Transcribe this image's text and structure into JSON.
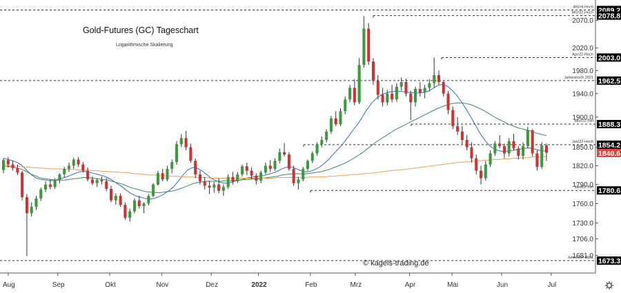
{
  "chart_data": {
    "type": "candlestick",
    "title": "Gold-Futures (GC) Tageschart",
    "subtitle": "Logarithmische Skalierung",
    "watermark": "© kagels-trading.de",
    "y_scale": "log",
    "ylim": [
      1655,
      2100
    ],
    "y_ticks": [
      "2070.0",
      "2020.0",
      "1980.0",
      "1940.0",
      "1900.0",
      "1850.0",
      "1820.0",
      "1790.0",
      "1760.0",
      "1730.0",
      "1706.0",
      "1681.0"
    ],
    "x_ticks": [
      "Aug",
      "Sep",
      "Okt",
      "Nov",
      "Dez",
      "2022",
      "Feb",
      "Mrz",
      "Apr",
      "Mai",
      "Jun",
      "Jul"
    ],
    "levels": [
      {
        "name": "Allzeit-Hoch",
        "value": 2089.2,
        "badge": "2089.2"
      },
      {
        "name": "Mrz/22-Hoch",
        "value": 2078.8,
        "badge": "2078.8"
      },
      {
        "name": "Apr/22-Hoch",
        "value": 2003.0,
        "badge": "2003.0"
      },
      {
        "name": "Jahreshoch 2021",
        "value": 1962.5,
        "badge": "1962.5"
      },
      {
        "name": "Mrz/22-Tief",
        "value": 1888.3,
        "badge": "1888.3"
      },
      {
        "name": "Jan/22-Hoch",
        "value": 1854.2,
        "badge": "1854.2"
      },
      {
        "name": "Jan/22-Tief",
        "value": 1780.6,
        "badge": "1780.6"
      },
      {
        "name": "Jahrestief 2021",
        "value": 1673.3,
        "badge": "1673.3"
      }
    ],
    "last_price": {
      "value": 1840.6,
      "badge": "1840.6"
    },
    "series": [
      {
        "kind": "ohlc",
        "name": "",
        "values": [
          [
            1813,
            1832,
            1808,
            1829
          ],
          [
            1829,
            1834,
            1817,
            1822
          ],
          [
            1822,
            1828,
            1812,
            1816
          ],
          [
            1816,
            1822,
            1805,
            1809
          ],
          [
            1809,
            1812,
            1765,
            1770
          ],
          [
            1770,
            1775,
            1680,
            1745
          ],
          [
            1745,
            1762,
            1740,
            1755
          ],
          [
            1755,
            1772,
            1750,
            1768
          ],
          [
            1768,
            1785,
            1764,
            1782
          ],
          [
            1782,
            1795,
            1778,
            1790
          ],
          [
            1790,
            1798,
            1782,
            1786
          ],
          [
            1786,
            1800,
            1783,
            1797
          ],
          [
            1797,
            1808,
            1792,
            1806
          ],
          [
            1806,
            1818,
            1801,
            1815
          ],
          [
            1815,
            1825,
            1810,
            1820
          ],
          [
            1820,
            1833,
            1815,
            1830
          ],
          [
            1830,
            1834,
            1818,
            1822
          ],
          [
            1822,
            1826,
            1809,
            1812
          ],
          [
            1812,
            1817,
            1795,
            1798
          ],
          [
            1798,
            1803,
            1789,
            1792
          ],
          [
            1792,
            1800,
            1786,
            1797
          ],
          [
            1797,
            1803,
            1790,
            1795
          ],
          [
            1795,
            1800,
            1780,
            1783
          ],
          [
            1783,
            1788,
            1762,
            1765
          ],
          [
            1765,
            1776,
            1758,
            1772
          ],
          [
            1772,
            1776,
            1755,
            1758
          ],
          [
            1758,
            1762,
            1735,
            1738
          ],
          [
            1738,
            1752,
            1732,
            1748
          ],
          [
            1748,
            1768,
            1745,
            1765
          ],
          [
            1765,
            1772,
            1752,
            1756
          ],
          [
            1756,
            1762,
            1745,
            1760
          ],
          [
            1760,
            1775,
            1757,
            1772
          ],
          [
            1772,
            1792,
            1770,
            1790
          ],
          [
            1790,
            1812,
            1788,
            1808
          ],
          [
            1808,
            1815,
            1795,
            1798
          ],
          [
            1798,
            1820,
            1795,
            1815
          ],
          [
            1815,
            1830,
            1808,
            1826
          ],
          [
            1826,
            1860,
            1822,
            1855
          ],
          [
            1855,
            1872,
            1850,
            1865
          ],
          [
            1865,
            1877,
            1845,
            1850
          ],
          [
            1850,
            1856,
            1825,
            1828
          ],
          [
            1828,
            1832,
            1800,
            1806
          ],
          [
            1806,
            1812,
            1790,
            1795
          ],
          [
            1795,
            1802,
            1782,
            1788
          ],
          [
            1788,
            1796,
            1775,
            1785
          ],
          [
            1785,
            1794,
            1777,
            1790
          ],
          [
            1790,
            1800,
            1776,
            1780
          ],
          [
            1780,
            1790,
            1772,
            1786
          ],
          [
            1786,
            1806,
            1783,
            1802
          ],
          [
            1802,
            1810,
            1790,
            1795
          ],
          [
            1795,
            1810,
            1792,
            1806
          ],
          [
            1806,
            1822,
            1803,
            1819
          ],
          [
            1819,
            1825,
            1805,
            1812
          ],
          [
            1812,
            1817,
            1798,
            1804
          ],
          [
            1804,
            1808,
            1790,
            1796
          ],
          [
            1796,
            1812,
            1792,
            1809
          ],
          [
            1809,
            1825,
            1806,
            1820
          ],
          [
            1820,
            1829,
            1810,
            1815
          ],
          [
            1815,
            1832,
            1812,
            1828
          ],
          [
            1828,
            1848,
            1824,
            1842
          ],
          [
            1842,
            1857,
            1835,
            1838
          ],
          [
            1838,
            1842,
            1812,
            1815
          ],
          [
            1815,
            1820,
            1788,
            1792
          ],
          [
            1792,
            1802,
            1782,
            1798
          ],
          [
            1798,
            1818,
            1795,
            1815
          ],
          [
            1815,
            1830,
            1812,
            1828
          ],
          [
            1828,
            1843,
            1824,
            1840
          ],
          [
            1840,
            1858,
            1836,
            1855
          ],
          [
            1855,
            1868,
            1850,
            1862
          ],
          [
            1862,
            1880,
            1858,
            1876
          ],
          [
            1876,
            1902,
            1872,
            1898
          ],
          [
            1898,
            1910,
            1885,
            1888
          ],
          [
            1888,
            1915,
            1885,
            1910
          ],
          [
            1910,
            1935,
            1905,
            1930
          ],
          [
            1930,
            1955,
            1925,
            1950
          ],
          [
            1950,
            1965,
            1920,
            1925
          ],
          [
            1925,
            2002,
            1922,
            1990
          ],
          [
            1990,
            2078,
            1985,
            2055
          ],
          [
            2055,
            2065,
            1990,
            1996
          ],
          [
            1996,
            2002,
            1955,
            1962
          ],
          [
            1962,
            1972,
            1930,
            1938
          ],
          [
            1938,
            1950,
            1918,
            1925
          ],
          [
            1925,
            1946,
            1920,
            1940
          ],
          [
            1940,
            1955,
            1925,
            1930
          ],
          [
            1930,
            1958,
            1926,
            1952
          ],
          [
            1952,
            1968,
            1945,
            1960
          ],
          [
            1960,
            1966,
            1935,
            1940
          ],
          [
            1940,
            1945,
            1895,
            1925
          ],
          [
            1925,
            1952,
            1918,
            1948
          ],
          [
            1948,
            1960,
            1935,
            1942
          ],
          [
            1942,
            1955,
            1932,
            1950
          ],
          [
            1950,
            1965,
            1945,
            1958
          ],
          [
            1958,
            2003,
            1950,
            1972
          ],
          [
            1972,
            1980,
            1955,
            1960
          ],
          [
            1960,
            1962,
            1935,
            1940
          ],
          [
            1940,
            1945,
            1905,
            1912
          ],
          [
            1912,
            1918,
            1880,
            1885
          ],
          [
            1885,
            1900,
            1870,
            1876
          ],
          [
            1876,
            1885,
            1855,
            1862
          ],
          [
            1862,
            1870,
            1845,
            1850
          ],
          [
            1850,
            1858,
            1825,
            1832
          ],
          [
            1832,
            1838,
            1806,
            1812
          ],
          [
            1812,
            1820,
            1790,
            1800
          ],
          [
            1800,
            1828,
            1796,
            1822
          ],
          [
            1822,
            1845,
            1818,
            1840
          ],
          [
            1840,
            1860,
            1836,
            1856
          ],
          [
            1856,
            1870,
            1848,
            1852
          ],
          [
            1852,
            1856,
            1832,
            1840
          ],
          [
            1840,
            1865,
            1835,
            1860
          ],
          [
            1860,
            1872,
            1845,
            1848
          ],
          [
            1848,
            1852,
            1830,
            1836
          ],
          [
            1836,
            1858,
            1830,
            1852
          ],
          [
            1852,
            1884,
            1848,
            1878
          ],
          [
            1878,
            1880,
            1835,
            1840
          ],
          [
            1840,
            1845,
            1812,
            1818
          ],
          [
            1818,
            1858,
            1815,
            1853
          ],
          [
            1853,
            1856,
            1828,
            1841
          ]
        ]
      },
      {
        "kind": "line",
        "name": "",
        "color": "#2e6fc7",
        "values": [
          1832,
          1830,
          1828,
          1825,
          1820,
          1812,
          1805,
          1800,
          1798,
          1797,
          1796,
          1797,
          1799,
          1801,
          1804,
          1807,
          1810,
          1811,
          1810,
          1808,
          1806,
          1804,
          1801,
          1797,
          1792,
          1787,
          1781,
          1776,
          1772,
          1770,
          1768,
          1767,
          1768,
          1771,
          1775,
          1780,
          1786,
          1795,
          1805,
          1813,
          1817,
          1816,
          1812,
          1806,
          1800,
          1796,
          1793,
          1792,
          1793,
          1795,
          1797,
          1799,
          1801,
          1802,
          1803,
          1804,
          1806,
          1808,
          1811,
          1815,
          1818,
          1818,
          1815,
          1812,
          1810,
          1811,
          1814,
          1818,
          1824,
          1831,
          1840,
          1848,
          1857,
          1867,
          1878,
          1888,
          1900,
          1913,
          1924,
          1932,
          1938,
          1941,
          1943,
          1944,
          1944,
          1943,
          1942,
          1941,
          1941,
          1942,
          1944,
          1949,
          1954,
          1956,
          1953,
          1946,
          1937,
          1926,
          1913,
          1900,
          1886,
          1872,
          1861,
          1852,
          1847,
          1844,
          1843,
          1844,
          1845,
          1846,
          1848,
          1849,
          1848,
          1846,
          1844,
          1844
        ]
      },
      {
        "kind": "line",
        "name": "",
        "color": "#3a8a5a",
        "values": [
          1820,
          1819,
          1818,
          1816,
          1814,
          1810,
          1806,
          1803,
          1800,
          1799,
          1798,
          1797,
          1797,
          1797,
          1798,
          1799,
          1800,
          1801,
          1801,
          1800,
          1799,
          1798,
          1797,
          1795,
          1793,
          1791,
          1788,
          1785,
          1783,
          1781,
          1779,
          1778,
          1777,
          1777,
          1778,
          1779,
          1780,
          1782,
          1785,
          1788,
          1791,
          1793,
          1794,
          1795,
          1795,
          1795,
          1795,
          1796,
          1796,
          1797,
          1797,
          1798,
          1798,
          1799,
          1799,
          1800,
          1801,
          1802,
          1803,
          1805,
          1806,
          1807,
          1807,
          1807,
          1807,
          1808,
          1809,
          1810,
          1812,
          1814,
          1817,
          1820,
          1823,
          1827,
          1831,
          1836,
          1841,
          1847,
          1853,
          1859,
          1864,
          1869,
          1874,
          1879,
          1883,
          1887,
          1891,
          1895,
          1899,
          1903,
          1907,
          1911,
          1915,
          1918,
          1921,
          1923,
          1924,
          1924,
          1923,
          1921,
          1918,
          1914,
          1910,
          1905,
          1900,
          1896,
          1892,
          1888,
          1885,
          1882,
          1880,
          1878,
          1876,
          1873,
          1871,
          1869
        ]
      },
      {
        "kind": "line",
        "name": "",
        "color": "#f0a052",
        "values": [
          1820,
          1820,
          1819,
          1819,
          1818,
          1818,
          1817,
          1817,
          1816,
          1816,
          1815,
          1815,
          1815,
          1814,
          1814,
          1814,
          1813,
          1813,
          1813,
          1812,
          1812,
          1811,
          1811,
          1810,
          1810,
          1809,
          1809,
          1808,
          1807,
          1807,
          1806,
          1805,
          1805,
          1804,
          1804,
          1803,
          1803,
          1803,
          1802,
          1802,
          1802,
          1801,
          1801,
          1801,
          1800,
          1800,
          1800,
          1800,
          1800,
          1800,
          1800,
          1800,
          1800,
          1800,
          1800,
          1800,
          1800,
          1800,
          1801,
          1801,
          1801,
          1801,
          1801,
          1801,
          1801,
          1802,
          1802,
          1802,
          1802,
          1803,
          1803,
          1804,
          1804,
          1805,
          1806,
          1806,
          1807,
          1808,
          1808,
          1809,
          1810,
          1811,
          1812,
          1813,
          1813,
          1814,
          1815,
          1816,
          1817,
          1818,
          1819,
          1820,
          1821,
          1822,
          1823,
          1824,
          1825,
          1826,
          1826,
          1827,
          1828,
          1828,
          1829,
          1829,
          1830,
          1830,
          1831,
          1831,
          1832,
          1832,
          1833,
          1833,
          1834,
          1834,
          1834,
          1835
        ]
      }
    ],
    "grid": false,
    "colors": {
      "up": "#3c9a3c",
      "down": "#cc3333",
      "level_line": "#333333",
      "badge": "#000000",
      "last_badge": "#e2423d"
    }
  },
  "settings_icon": "gear-icon"
}
